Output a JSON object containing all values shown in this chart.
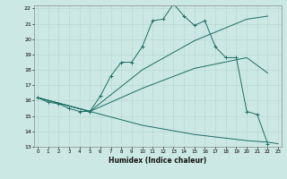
{
  "xlabel": "Humidex (Indice chaleur)",
  "background_color": "#cce8e4",
  "grid_color": "#b8d8d4",
  "line_color": "#1a6e62",
  "x_min": 0,
  "x_max": 23,
  "y_min": 13,
  "y_max": 22,
  "line1_x": [
    0,
    1,
    2,
    3,
    4,
    5,
    6,
    7,
    8,
    9,
    10,
    11,
    12,
    13,
    14,
    15,
    16,
    17,
    18,
    19,
    20,
    21,
    22,
    23
  ],
  "line1_y": [
    16.2,
    15.9,
    15.8,
    15.5,
    15.3,
    15.3,
    16.3,
    17.6,
    18.5,
    18.5,
    19.5,
    21.2,
    21.3,
    22.3,
    21.5,
    20.9,
    21.2,
    19.5,
    18.8,
    18.8,
    15.3,
    15.1,
    13.2,
    null
  ],
  "line2_x": [
    0,
    5,
    10,
    15,
    20,
    22
  ],
  "line2_y": [
    16.2,
    15.3,
    18.0,
    19.9,
    21.3,
    21.5
  ],
  "line3_x": [
    0,
    5,
    10,
    15,
    20,
    22
  ],
  "line3_y": [
    16.2,
    15.3,
    16.8,
    18.1,
    18.8,
    17.8
  ],
  "line4_x": [
    0,
    5,
    10,
    15,
    20,
    22,
    23
  ],
  "line4_y": [
    16.2,
    15.3,
    14.4,
    13.8,
    13.4,
    13.3,
    13.2
  ]
}
